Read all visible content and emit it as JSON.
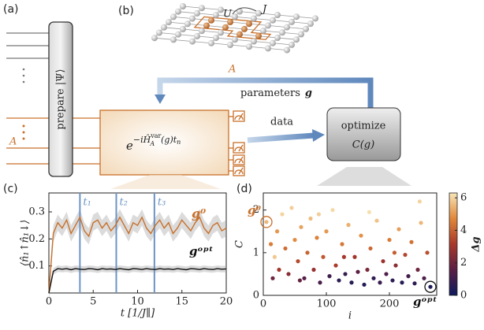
{
  "panel_labels": [
    "(a)",
    "(b)",
    "(c)",
    "(d)"
  ],
  "panel_a": {
    "box_text": "prepare |Ψ⟩",
    "region_label": "A"
  },
  "panel_b": {
    "interaction_label": "U",
    "hopping_label": "J",
    "region_label": "A"
  },
  "flow": {
    "parameters_text": "parameters",
    "parameters_symbol": "g",
    "data_text": "data",
    "optimize_text": "optimize",
    "cost_text": "C(g)"
  },
  "operator": {
    "base": "e",
    "exponent": "−iĤ",
    "sup": "var",
    "sub": "A",
    "rest": "(g)t",
    "sub2": "n"
  },
  "chart_data": [
    {
      "type": "line",
      "x_label": "t [1/J∥]",
      "y_label": "⟨n̂₁↑n̂₁↓⟩",
      "x": [
        0,
        0.5,
        1,
        1.5,
        2,
        2.5,
        3,
        3.5,
        4,
        4.5,
        5,
        5.5,
        6,
        6.5,
        7,
        7.5,
        8,
        8.5,
        9,
        9.5,
        10,
        10.5,
        11,
        11.5,
        12,
        12.5,
        13,
        13.5,
        14,
        14.5,
        15,
        15.5,
        16,
        16.5,
        17,
        17.5,
        18,
        18.5,
        19,
        19.5,
        20
      ],
      "series": [
        {
          "name": "g⁰",
          "color": "#c8702a",
          "error": 0.03,
          "values": [
            0.0,
            0.22,
            0.26,
            0.24,
            0.27,
            0.22,
            0.25,
            0.28,
            0.23,
            0.21,
            0.26,
            0.27,
            0.24,
            0.26,
            0.23,
            0.25,
            0.28,
            0.25,
            0.22,
            0.26,
            0.25,
            0.28,
            0.24,
            0.22,
            0.25,
            0.27,
            0.24,
            0.26,
            0.22,
            0.24,
            0.27,
            0.25,
            0.23,
            0.26,
            0.28,
            0.24,
            0.22,
            0.25,
            0.26,
            0.23,
            0.24
          ]
        },
        {
          "name": "gᵒᵖᵗ",
          "color": "#111111",
          "error": 0.012,
          "values": [
            0.0,
            0.08,
            0.09,
            0.088,
            0.09,
            0.086,
            0.09,
            0.088,
            0.087,
            0.09,
            0.089,
            0.086,
            0.09,
            0.088,
            0.089,
            0.087,
            0.09,
            0.088,
            0.086,
            0.09,
            0.089,
            0.087,
            0.09,
            0.088,
            0.087,
            0.09,
            0.088,
            0.089,
            0.087,
            0.09,
            0.088,
            0.086,
            0.09,
            0.089,
            0.087,
            0.09,
            0.088,
            0.087,
            0.09,
            0.088,
            0.089
          ]
        }
      ],
      "markers": [
        {
          "value": 3.5,
          "label": "t₁"
        },
        {
          "value": 7.6,
          "label": "t₂"
        },
        {
          "value": 11.9,
          "label": "t₃"
        }
      ],
      "marker_color": "#6d94c4",
      "xlim": [
        0,
        20
      ],
      "xticks": [
        0,
        5,
        10,
        15,
        20
      ],
      "ylim": [
        0,
        0.37
      ],
      "yticks": [
        0.1,
        0.2,
        0.3
      ]
    },
    {
      "type": "scatter",
      "x_label": "i",
      "y_label": "C",
      "x": [
        5,
        12,
        18,
        22,
        25,
        30,
        35,
        40,
        45,
        50,
        55,
        60,
        65,
        70,
        75,
        80,
        85,
        90,
        95,
        100,
        105,
        110,
        115,
        120,
        125,
        130,
        135,
        140,
        145,
        150,
        155,
        160,
        165,
        170,
        175,
        180,
        185,
        190,
        195,
        200,
        205,
        210,
        215,
        220,
        225,
        230,
        235,
        240,
        245,
        250,
        255,
        260,
        265,
        15,
        58,
        88,
        128,
        168,
        208,
        248
      ],
      "y": [
        1.72,
        1.2,
        0.9,
        1.5,
        0.6,
        1.9,
        1.1,
        0.5,
        2.05,
        1.3,
        0.8,
        1.6,
        0.4,
        1.0,
        1.8,
        0.6,
        1.35,
        0.3,
        0.9,
        1.5,
        0.45,
        2.0,
        0.7,
        0.35,
        1.2,
        0.5,
        1.65,
        0.3,
        0.9,
        0.55,
        1.4,
        0.25,
        0.6,
        1.1,
        0.4,
        1.75,
        0.3,
        0.8,
        0.5,
        1.3,
        0.35,
        0.7,
        1.55,
        0.3,
        0.95,
        0.45,
        1.25,
        0.28,
        0.6,
        1.7,
        0.4,
        1.0,
        0.2,
        0.4,
        0.35,
        1.9,
        0.9,
        1.95,
        1.0,
        2.2
      ],
      "c": [
        5.5,
        4.5,
        5.8,
        5.0,
        3.0,
        6.0,
        4.2,
        2.5,
        5.9,
        4.8,
        3.5,
        5.2,
        1.5,
        4.0,
        5.6,
        2.8,
        4.6,
        1.2,
        3.8,
        5.0,
        1.0,
        6.1,
        3.2,
        0.6,
        4.4,
        0.8,
        5.4,
        0.5,
        3.0,
        1.6,
        4.9,
        0.4,
        2.2,
        4.1,
        0.7,
        5.7,
        0.9,
        2.9,
        1.4,
        4.5,
        0.6,
        2.5,
        5.1,
        0.5,
        3.4,
        1.1,
        4.3,
        0.7,
        2.0,
        5.5,
        1.3,
        3.6,
        0.3,
        2.0,
        1.8,
        5.9,
        3.1,
        6.2,
        3.9,
        6.0
      ],
      "xlim": [
        0,
        275
      ],
      "xticks": [
        0,
        100,
        200
      ],
      "ylim": [
        0,
        2.4
      ],
      "yticks": [
        0,
        1,
        2
      ],
      "colormap": [
        "#0d1a5c",
        "#5a1f45",
        "#a8382a",
        "#e0873a",
        "#f8e6b8"
      ],
      "colorbar": {
        "label": "Δg",
        "lim": [
          0,
          6.3
        ],
        "ticks": [
          0,
          2,
          4,
          6
        ]
      },
      "annotations": [
        {
          "text": "g⁰",
          "x": 5,
          "y": 1.72,
          "color": "#c8702a"
        },
        {
          "text": "gᵒᵖᵗ",
          "x": 265,
          "y": 0.2,
          "color": "#111111"
        }
      ]
    }
  ]
}
